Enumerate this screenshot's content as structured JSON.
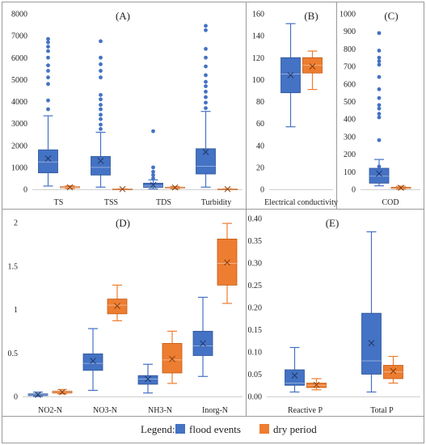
{
  "legend": {
    "title": "Legend:",
    "items": [
      {
        "label": "flood events",
        "color": "#4472C4"
      },
      {
        "label": "dry period",
        "color": "#ED7D31"
      }
    ]
  },
  "colors": {
    "flood": "#4472C4",
    "dry": "#ED7D31",
    "flood_edge": "#2F5597",
    "dry_edge": "#C55A11"
  },
  "chart_data": [
    {
      "type": "box",
      "title": "(A)",
      "ylim": [
        0,
        8000
      ],
      "yticks": [
        0,
        1000,
        2000,
        3000,
        4000,
        5000,
        6000,
        7000,
        8000
      ],
      "ytick_labels": [
        "0",
        "1000",
        "2000",
        "3000",
        "4000",
        "5000",
        "6000",
        "7000",
        "8000"
      ],
      "categories": [
        "TS",
        "TSS",
        "TDS",
        "Turbidity"
      ],
      "series": [
        {
          "group": "flood events",
          "boxes": [
            {
              "min": 150,
              "q1": 750,
              "median": 1250,
              "q3": 1800,
              "max": 3350,
              "mean": 1400,
              "outliers": [
                3650,
                4050,
                4800,
                5100,
                5400,
                5650,
                6000,
                6300,
                6500,
                6700,
                6850
              ]
            },
            {
              "min": 100,
              "q1": 650,
              "median": 1000,
              "q3": 1500,
              "max": 2600,
              "mean": 1300,
              "outliers": [
                2750,
                2950,
                3200,
                3400,
                3650,
                3850,
                4100,
                4300,
                5100,
                5400,
                5700,
                6000,
                6750
              ]
            },
            {
              "min": 20,
              "q1": 90,
              "median": 150,
              "q3": 280,
              "max": 430,
              "mean": 200,
              "outliers": [
                500,
                650,
                800,
                1000,
                2650
              ]
            },
            {
              "min": 100,
              "q1": 700,
              "median": 1050,
              "q3": 1850,
              "max": 3550,
              "mean": 1700,
              "outliers": [
                3700,
                3950,
                4200,
                4450,
                4700,
                4900,
                5200,
                5600,
                6000,
                6400,
                7250,
                7450
              ]
            }
          ]
        },
        {
          "group": "dry period",
          "boxes": [
            {
              "min": 40,
              "q1": 70,
              "median": 90,
              "q3": 120,
              "max": 160,
              "mean": 95,
              "outliers": []
            },
            {
              "min": 0,
              "q1": 5,
              "median": 10,
              "q3": 20,
              "max": 30,
              "mean": 12,
              "outliers": []
            },
            {
              "min": 30,
              "q1": 60,
              "median": 80,
              "q3": 100,
              "max": 130,
              "mean": 85,
              "outliers": []
            },
            {
              "min": 0,
              "q1": 5,
              "median": 10,
              "q3": 20,
              "max": 30,
              "mean": 12,
              "outliers": []
            }
          ]
        }
      ]
    },
    {
      "type": "box",
      "title": "(B)",
      "ylim": [
        0,
        160
      ],
      "yticks": [
        0,
        20,
        40,
        60,
        80,
        100,
        120,
        140,
        160
      ],
      "ytick_labels": [
        "0",
        "20",
        "40",
        "60",
        "80",
        "100",
        "120",
        "140",
        "160"
      ],
      "categories": [
        "Electrical conductivity"
      ],
      "series": [
        {
          "group": "flood events",
          "boxes": [
            {
              "min": 57,
              "q1": 88,
              "median": 105,
              "q3": 120,
              "max": 151,
              "mean": 104,
              "outliers": []
            }
          ]
        },
        {
          "group": "dry period",
          "boxes": [
            {
              "min": 91,
              "q1": 106,
              "median": 113,
              "q3": 120,
              "max": 126,
              "mean": 112,
              "outliers": []
            }
          ]
        }
      ]
    },
    {
      "type": "box",
      "title": "(C)",
      "ylim": [
        0,
        1000
      ],
      "yticks": [
        0,
        100,
        200,
        300,
        400,
        500,
        600,
        700,
        800,
        900,
        1000
      ],
      "ytick_labels": [
        "0",
        "100",
        "200",
        "300",
        "400",
        "500",
        "600",
        "700",
        "800",
        "900",
        "1000"
      ],
      "categories": [
        "COD"
      ],
      "series": [
        {
          "group": "flood events",
          "boxes": [
            {
              "min": 20,
              "q1": 35,
              "median": 75,
              "q3": 120,
              "max": 170,
              "mean": 90,
              "outliers": [
                130,
                280,
                410,
                430,
                460,
                480,
                520,
                570,
                640,
                710,
                730,
                750,
                790,
                890
              ]
            }
          ]
        },
        {
          "group": "dry period",
          "boxes": [
            {
              "min": 2,
              "q1": 5,
              "median": 8,
              "q3": 12,
              "max": 18,
              "mean": 9,
              "outliers": []
            }
          ]
        }
      ]
    },
    {
      "type": "box",
      "title": "(D)",
      "ylim": [
        0,
        2
      ],
      "yticks": [
        0,
        0.5,
        1,
        1.5,
        2
      ],
      "ytick_labels": [
        "0",
        "0.5",
        "1",
        "1.5",
        "2"
      ],
      "categories": [
        "NO2-N",
        "NO3-N",
        "NH3-N",
        "Inorg-N"
      ],
      "series": [
        {
          "group": "flood events",
          "boxes": [
            {
              "min": 0.0,
              "q1": 0.01,
              "median": 0.02,
              "q3": 0.03,
              "max": 0.05,
              "mean": 0.02,
              "outliers": []
            },
            {
              "min": 0.07,
              "q1": 0.3,
              "median": 0.38,
              "q3": 0.49,
              "max": 0.78,
              "mean": 0.41,
              "outliers": []
            },
            {
              "min": 0.04,
              "q1": 0.14,
              "median": 0.2,
              "q3": 0.24,
              "max": 0.37,
              "mean": 0.2,
              "outliers": []
            },
            {
              "min": 0.23,
              "q1": 0.47,
              "median": 0.58,
              "q3": 0.75,
              "max": 1.14,
              "mean": 0.61,
              "outliers": []
            }
          ]
        },
        {
          "group": "dry period",
          "boxes": [
            {
              "min": 0.03,
              "q1": 0.04,
              "median": 0.05,
              "q3": 0.06,
              "max": 0.08,
              "mean": 0.05,
              "outliers": []
            },
            {
              "min": 0.87,
              "q1": 0.95,
              "median": 1.05,
              "q3": 1.12,
              "max": 1.28,
              "mean": 1.04,
              "outliers": []
            },
            {
              "min": 0.15,
              "q1": 0.27,
              "median": 0.42,
              "q3": 0.61,
              "max": 0.75,
              "mean": 0.43,
              "outliers": []
            },
            {
              "min": 1.07,
              "q1": 1.28,
              "median": 1.53,
              "q3": 1.81,
              "max": 1.99,
              "mean": 1.54,
              "outliers": []
            }
          ]
        }
      ]
    },
    {
      "type": "box",
      "title": "(E)",
      "ylim": [
        0,
        0.4
      ],
      "yticks": [
        0,
        0.05,
        0.1,
        0.15,
        0.2,
        0.25,
        0.3,
        0.35,
        0.4
      ],
      "ytick_labels": [
        "0.00",
        "0.05",
        "0.10",
        "0.15",
        "0.20",
        "0.25",
        "0.30",
        "0.35",
        "0.40"
      ],
      "categories": [
        "Reactive P",
        "Total P"
      ],
      "series": [
        {
          "group": "flood events",
          "boxes": [
            {
              "min": 0.01,
              "q1": 0.025,
              "median": 0.03,
              "q3": 0.06,
              "max": 0.11,
              "mean": 0.047,
              "outliers": []
            },
            {
              "min": 0.01,
              "q1": 0.05,
              "median": 0.08,
              "q3": 0.187,
              "max": 0.37,
              "mean": 0.12,
              "outliers": []
            }
          ]
        },
        {
          "group": "dry period",
          "boxes": [
            {
              "min": 0.015,
              "q1": 0.02,
              "median": 0.025,
              "q3": 0.03,
              "max": 0.04,
              "mean": 0.026,
              "outliers": []
            },
            {
              "min": 0.03,
              "q1": 0.04,
              "median": 0.055,
              "q3": 0.07,
              "max": 0.09,
              "mean": 0.057,
              "outliers": []
            }
          ]
        }
      ]
    }
  ]
}
